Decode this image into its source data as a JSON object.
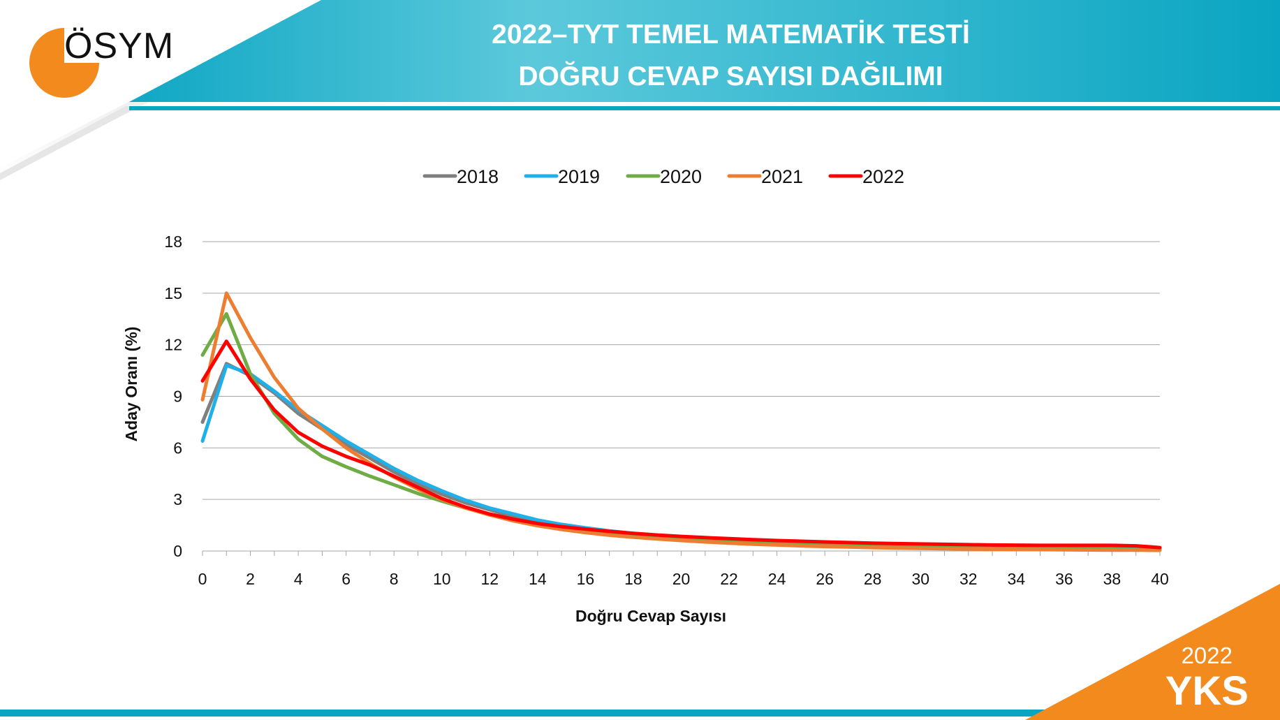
{
  "header": {
    "title_line1": "2022–TYT TEMEL MATEMATİK TESTİ",
    "title_line2": "DOĞRU CEVAP SAYISI DAĞILIMI",
    "brand": "ÖSYM",
    "accent": "#0aa5c2",
    "brand_color": "#f28a1e"
  },
  "badge": {
    "year": "2022",
    "name": "YKS",
    "color": "#f28a1e"
  },
  "chart_data": {
    "type": "line",
    "xlabel": "Doğru Cevap Sayısı",
    "ylabel": "Aday Oranı (%)",
    "xlim": [
      0,
      40
    ],
    "ylim": [
      0,
      18
    ],
    "xticks": [
      0,
      2,
      4,
      6,
      8,
      10,
      12,
      14,
      16,
      18,
      20,
      22,
      24,
      26,
      28,
      30,
      32,
      34,
      36,
      38,
      40
    ],
    "yticks": [
      0,
      3,
      6,
      9,
      12,
      15,
      18
    ],
    "grid": "horizontal",
    "legend_position": "top",
    "x": [
      0,
      1,
      2,
      3,
      4,
      5,
      6,
      7,
      8,
      9,
      10,
      11,
      12,
      13,
      14,
      15,
      16,
      17,
      18,
      19,
      20,
      21,
      22,
      23,
      24,
      25,
      26,
      27,
      28,
      29,
      30,
      31,
      32,
      33,
      34,
      35,
      36,
      37,
      38,
      39,
      40
    ],
    "series": [
      {
        "name": "2018",
        "color": "#7f7f7f",
        "values": [
          7.5,
          10.9,
          10.2,
          9.2,
          8.0,
          7.1,
          6.2,
          5.4,
          4.6,
          3.9,
          3.3,
          2.8,
          2.4,
          2.0,
          1.7,
          1.45,
          1.25,
          1.08,
          0.95,
          0.85,
          0.75,
          0.67,
          0.6,
          0.54,
          0.48,
          0.43,
          0.39,
          0.35,
          0.32,
          0.29,
          0.26,
          0.24,
          0.22,
          0.2,
          0.19,
          0.18,
          0.17,
          0.16,
          0.15,
          0.14,
          0.12
        ]
      },
      {
        "name": "2019",
        "color": "#1fb0ea",
        "values": [
          6.4,
          10.8,
          10.3,
          9.3,
          8.2,
          7.3,
          6.4,
          5.6,
          4.8,
          4.1,
          3.5,
          2.95,
          2.5,
          2.15,
          1.8,
          1.55,
          1.35,
          1.17,
          1.03,
          0.92,
          0.82,
          0.73,
          0.66,
          0.59,
          0.53,
          0.47,
          0.42,
          0.38,
          0.34,
          0.31,
          0.28,
          0.26,
          0.24,
          0.22,
          0.2,
          0.19,
          0.18,
          0.17,
          0.16,
          0.15,
          0.13
        ]
      },
      {
        "name": "2020",
        "color": "#6fac46",
        "values": [
          11.4,
          13.8,
          10.3,
          8.0,
          6.5,
          5.5,
          4.9,
          4.35,
          3.85,
          3.35,
          2.9,
          2.5,
          2.15,
          1.85,
          1.6,
          1.4,
          1.22,
          1.07,
          0.94,
          0.84,
          0.74,
          0.66,
          0.58,
          0.51,
          0.45,
          0.4,
          0.35,
          0.31,
          0.27,
          0.24,
          0.21,
          0.19,
          0.17,
          0.15,
          0.14,
          0.13,
          0.12,
          0.11,
          0.1,
          0.09,
          0.08
        ]
      },
      {
        "name": "2021",
        "color": "#ed7d31",
        "values": [
          8.8,
          15.0,
          12.4,
          10.1,
          8.3,
          7.1,
          6.0,
          5.1,
          4.3,
          3.6,
          3.0,
          2.5,
          2.1,
          1.75,
          1.47,
          1.25,
          1.07,
          0.92,
          0.8,
          0.7,
          0.61,
          0.53,
          0.46,
          0.4,
          0.35,
          0.3,
          0.26,
          0.23,
          0.2,
          0.17,
          0.15,
          0.13,
          0.11,
          0.1,
          0.09,
          0.08,
          0.07,
          0.06,
          0.05,
          0.05,
          0.04
        ]
      },
      {
        "name": "2022",
        "color": "#ff0000",
        "values": [
          9.9,
          12.2,
          10.0,
          8.2,
          6.9,
          6.1,
          5.5,
          5.0,
          4.35,
          3.7,
          3.05,
          2.55,
          2.15,
          1.85,
          1.6,
          1.42,
          1.27,
          1.14,
          1.03,
          0.93,
          0.85,
          0.78,
          0.72,
          0.66,
          0.61,
          0.57,
          0.53,
          0.49,
          0.46,
          0.43,
          0.41,
          0.39,
          0.37,
          0.35,
          0.34,
          0.33,
          0.33,
          0.33,
          0.33,
          0.3,
          0.2
        ]
      }
    ]
  }
}
